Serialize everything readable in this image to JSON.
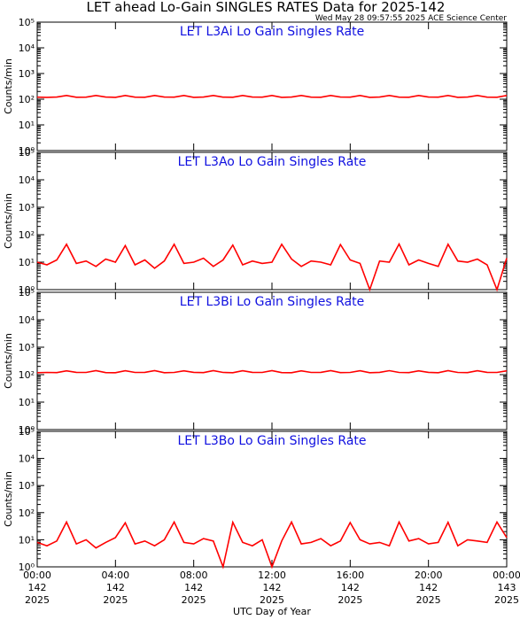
{
  "header": {
    "title": "LET ahead Lo-Gain SINGLES RATES Data for 2025-142",
    "timestamp": "Wed May 28 09:57:55 2025 ACE Science Center",
    "xlabel": "UTC Day of Year"
  },
  "chart_data": [
    {
      "type": "line",
      "title": "LET L3Ai Lo Gain Singles Rate",
      "ylabel": "Counts/min",
      "log_y": true,
      "xlim": [
        0,
        24
      ],
      "xticks": [
        0,
        4,
        8,
        12,
        16,
        20,
        24
      ],
      "ylim": [
        1,
        100000
      ],
      "yticks": [
        {
          "value": 1,
          "label": "10⁰"
        },
        {
          "value": 10,
          "label": "10¹"
        },
        {
          "value": 100,
          "label": "10²"
        },
        {
          "value": 1000,
          "label": "10³"
        },
        {
          "value": 10000,
          "label": "10⁴"
        },
        {
          "value": 100000,
          "label": "10⁵"
        }
      ],
      "x": [
        0,
        0.5,
        1,
        1.5,
        2,
        2.5,
        3,
        3.5,
        4,
        4.5,
        5,
        5.5,
        6,
        6.5,
        7,
        7.5,
        8,
        8.5,
        9,
        9.5,
        10,
        10.5,
        11,
        11.5,
        12,
        12.5,
        13,
        13.5,
        14,
        14.5,
        15,
        15.5,
        16,
        16.5,
        17,
        17.5,
        18,
        18.5,
        19,
        19.5,
        20,
        20.5,
        21,
        21.5,
        22,
        22.5,
        23,
        23.5,
        24
      ],
      "series": [
        {
          "name": "L3Ai",
          "color": "#ff0000",
          "values": [
            120,
            118,
            121,
            140,
            119,
            120,
            140,
            121,
            118,
            140,
            120,
            119,
            140,
            121,
            120,
            140,
            118,
            121,
            140,
            120,
            119,
            140,
            121,
            120,
            140,
            118,
            121,
            140,
            120,
            119,
            140,
            121,
            120,
            140,
            118,
            121,
            140,
            120,
            119,
            140,
            121,
            120,
            140,
            118,
            121,
            140,
            120,
            119,
            140
          ]
        }
      ]
    },
    {
      "type": "line",
      "title": "LET L3Ao Lo Gain Singles Rate",
      "ylabel": "Counts/min",
      "log_y": true,
      "xlim": [
        0,
        24
      ],
      "xticks": [
        0,
        4,
        8,
        12,
        16,
        20,
        24
      ],
      "ylim": [
        1,
        100000
      ],
      "yticks": [
        {
          "value": 1,
          "label": "10⁰"
        },
        {
          "value": 10,
          "label": "10¹"
        },
        {
          "value": 100,
          "label": "10²"
        },
        {
          "value": 1000,
          "label": "10³"
        },
        {
          "value": 10000,
          "label": "10⁴"
        },
        {
          "value": 100000,
          "label": "10⁵"
        }
      ],
      "x": [
        0,
        0.5,
        1,
        1.5,
        2,
        2.5,
        3,
        3.5,
        4,
        4.5,
        5,
        5.5,
        6,
        6.5,
        7,
        7.5,
        8,
        8.5,
        9,
        9.5,
        10,
        10.5,
        11,
        11.5,
        12,
        12.5,
        13,
        13.5,
        14,
        14.5,
        15,
        15.5,
        16,
        16.5,
        17,
        17.5,
        18,
        18.5,
        19,
        19.5,
        20,
        20.5,
        21,
        21.5,
        22,
        22.5,
        23,
        23.5,
        24
      ],
      "series": [
        {
          "name": "L3Ao",
          "color": "#ff0000",
          "values": [
            10,
            8,
            12,
            45,
            9,
            11,
            7,
            13,
            10,
            40,
            8,
            12,
            6,
            11,
            45,
            9,
            10,
            14,
            7,
            12,
            42,
            8,
            11,
            9,
            10,
            45,
            13,
            7,
            11,
            10,
            8,
            44,
            12,
            9,
            1,
            11,
            10,
            46,
            8,
            12,
            9,
            7,
            45,
            11,
            10,
            13,
            8,
            1,
            14
          ]
        }
      ]
    },
    {
      "type": "line",
      "title": "LET L3Bi Lo Gain Singles Rate",
      "ylabel": "Counts/min",
      "log_y": true,
      "xlim": [
        0,
        24
      ],
      "xticks": [
        0,
        4,
        8,
        12,
        16,
        20,
        24
      ],
      "ylim": [
        1,
        100000
      ],
      "yticks": [
        {
          "value": 1,
          "label": "10⁰"
        },
        {
          "value": 10,
          "label": "10¹"
        },
        {
          "value": 100,
          "label": "10²"
        },
        {
          "value": 1000,
          "label": "10³"
        },
        {
          "value": 10000,
          "label": "10⁴"
        },
        {
          "value": 100000,
          "label": "10⁵"
        }
      ],
      "x": [
        0,
        0.5,
        1,
        1.5,
        2,
        2.5,
        3,
        3.5,
        4,
        4.5,
        5,
        5.5,
        6,
        6.5,
        7,
        7.5,
        8,
        8.5,
        9,
        9.5,
        10,
        10.5,
        11,
        11.5,
        12,
        12.5,
        13,
        13.5,
        14,
        14.5,
        15,
        15.5,
        16,
        16.5,
        17,
        17.5,
        18,
        18.5,
        19,
        19.5,
        20,
        20.5,
        21,
        21.5,
        22,
        22.5,
        23,
        23.5,
        24
      ],
      "series": [
        {
          "name": "L3Bi",
          "color": "#ff0000",
          "values": [
            118,
            120,
            119,
            138,
            121,
            120,
            140,
            119,
            118,
            139,
            120,
            121,
            140,
            118,
            120,
            138,
            121,
            119,
            140,
            120,
            118,
            139,
            121,
            120,
            140,
            119,
            118,
            138,
            120,
            121,
            140,
            119,
            120,
            139,
            118,
            121,
            140,
            120,
            119,
            138,
            121,
            118,
            140,
            120,
            119,
            139,
            121,
            120,
            138
          ]
        }
      ]
    },
    {
      "type": "line",
      "title": "LET L3Bo Lo Gain Singles Rate",
      "ylabel": "Counts/min",
      "log_y": true,
      "xlim": [
        0,
        24
      ],
      "xticks": [
        {
          "value": 0,
          "label": [
            "00:00",
            "142",
            "2025"
          ]
        },
        {
          "value": 4,
          "label": [
            "04:00",
            "142",
            "2025"
          ]
        },
        {
          "value": 8,
          "label": [
            "08:00",
            "142",
            "2025"
          ]
        },
        {
          "value": 12,
          "label": [
            "12:00",
            "142",
            "2025"
          ]
        },
        {
          "value": 16,
          "label": [
            "16:00",
            "142",
            "2025"
          ]
        },
        {
          "value": 20,
          "label": [
            "20:00",
            "142",
            "2025"
          ]
        },
        {
          "value": 24,
          "label": [
            "00:00",
            "143",
            "2025"
          ]
        }
      ],
      "ylim": [
        1,
        100000
      ],
      "yticks": [
        {
          "value": 1,
          "label": "10⁰"
        },
        {
          "value": 10,
          "label": "10¹"
        },
        {
          "value": 100,
          "label": "10²"
        },
        {
          "value": 1000,
          "label": "10³"
        },
        {
          "value": 10000,
          "label": "10⁴"
        },
        {
          "value": 100000,
          "label": "10⁵"
        }
      ],
      "x": [
        0,
        0.5,
        1,
        1.5,
        2,
        2.5,
        3,
        3.5,
        4,
        4.5,
        5,
        5.5,
        6,
        6.5,
        7,
        7.5,
        8,
        8.5,
        9,
        9.5,
        10,
        10.5,
        11,
        11.5,
        12,
        12.5,
        13,
        13.5,
        14,
        14.5,
        15,
        15.5,
        16,
        16.5,
        17,
        17.5,
        18,
        18.5,
        19,
        19.5,
        20,
        20.5,
        21,
        21.5,
        22,
        22.5,
        23,
        23.5,
        24
      ],
      "series": [
        {
          "name": "L3Bo",
          "color": "#ff0000",
          "values": [
            8,
            6,
            9,
            45,
            7,
            10,
            5,
            8,
            12,
            42,
            7,
            9,
            6,
            10,
            45,
            8,
            7,
            11,
            9,
            1,
            44,
            8,
            6,
            10,
            1,
            9,
            45,
            7,
            8,
            11,
            6,
            9,
            43,
            10,
            7,
            8,
            6,
            45,
            9,
            11,
            7,
            8,
            44,
            6,
            10,
            9,
            8,
            45,
            12
          ]
        }
      ]
    }
  ]
}
